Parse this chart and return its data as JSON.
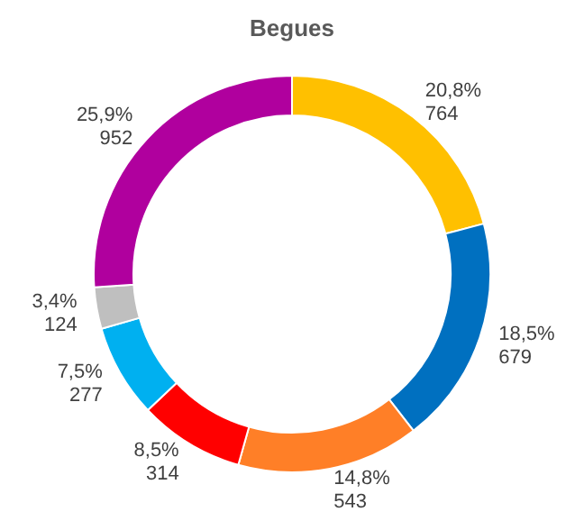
{
  "chart_data": {
    "type": "donut",
    "title": "Begues",
    "categories": [
      null,
      null,
      null,
      null,
      null,
      null,
      null
    ],
    "values": [
      764,
      679,
      543,
      314,
      277,
      124,
      952
    ],
    "value_labels": [
      "20,8%\n764",
      "18,5%\n679",
      "14,8%\n543",
      "8,5%\n314",
      "7,5%\n277",
      "3,4%\n124",
      "25,9%\n952"
    ],
    "colors": [
      "#ffc000",
      "#0070c0",
      "#ff7f27",
      "#ff0000",
      "#00b0f0",
      "#bfbfbf",
      "#b0009e"
    ]
  }
}
